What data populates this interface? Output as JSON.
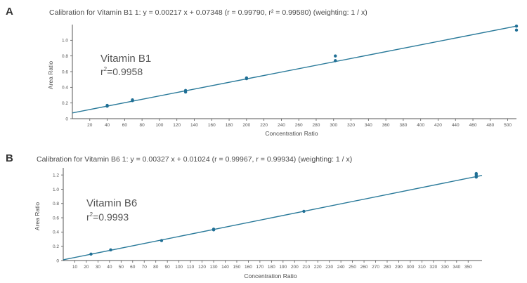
{
  "chart_data": [
    {
      "panel": "A",
      "type": "scatter",
      "title": "Calibration for Vitamin B1 1: y = 0.00217 x + 0.07348 (r = 0.99790, r² = 0.99580) (weighting: 1 / x)",
      "xlabel": "Concentration Ratio",
      "ylabel": "Area Ratio",
      "xlim": [
        0,
        510
      ],
      "ylim": [
        0,
        1.2
      ],
      "x_ticks": [
        20,
        40,
        60,
        80,
        100,
        120,
        140,
        160,
        180,
        200,
        220,
        240,
        260,
        280,
        300,
        320,
        340,
        360,
        380,
        400,
        420,
        440,
        460,
        480,
        500
      ],
      "y_ticks": [
        0,
        0.2,
        0.4,
        0.6,
        0.8,
        1.0
      ],
      "annotation": {
        "name": "Vitamin B1",
        "r2_prefix": "r",
        "r2_sup": "2",
        "r2_value": "=0.9958"
      },
      "fit": {
        "slope": 0.00217,
        "intercept": 0.07348
      },
      "series": [
        {
          "points": [
            [
              40,
              0.16
            ],
            [
              40,
              0.17
            ],
            [
              69,
              0.23
            ],
            [
              69,
              0.24
            ],
            [
              130,
              0.34
            ],
            [
              130,
              0.36
            ],
            [
              200,
              0.51
            ],
            [
              200,
              0.52
            ],
            [
              302,
              0.74
            ],
            [
              302,
              0.8
            ],
            [
              510,
              1.13
            ],
            [
              510,
              1.18
            ]
          ]
        }
      ],
      "grid": false
    },
    {
      "panel": "B",
      "type": "scatter",
      "title": "Calibration for Vitamin B6 1: y = 0.00327 x + 0.01024 (r = 0.99967, r = 0.99934) (weighting: 1 / x)",
      "xlabel": "Concentration Ratio",
      "ylabel": "Area Ratio",
      "xlim": [
        0,
        362
      ],
      "ylim": [
        0,
        1.3
      ],
      "x_ticks": [
        10,
        20,
        30,
        40,
        50,
        60,
        70,
        80,
        90,
        100,
        110,
        120,
        130,
        140,
        150,
        160,
        170,
        180,
        190,
        200,
        210,
        220,
        230,
        240,
        250,
        260,
        270,
        280,
        290,
        300,
        310,
        320,
        330,
        340,
        350
      ],
      "y_ticks": [
        0,
        0.2,
        0.4,
        0.6,
        0.8,
        1.0,
        1.2
      ],
      "annotation": {
        "name": "Vitamin B6",
        "r2_prefix": "r",
        "r2_sup": "2",
        "r2_value": "=0.9993"
      },
      "fit": {
        "slope": 0.00327,
        "intercept": 0.01024
      },
      "series": [
        {
          "points": [
            [
              24,
              0.09
            ],
            [
              41,
              0.15
            ],
            [
              85,
              0.28
            ],
            [
              130,
              0.43
            ],
            [
              130,
              0.44
            ],
            [
              208,
              0.69
            ],
            [
              357,
              1.17
            ],
            [
              357,
              1.2
            ],
            [
              357,
              1.22
            ]
          ]
        }
      ],
      "grid": false
    }
  ]
}
